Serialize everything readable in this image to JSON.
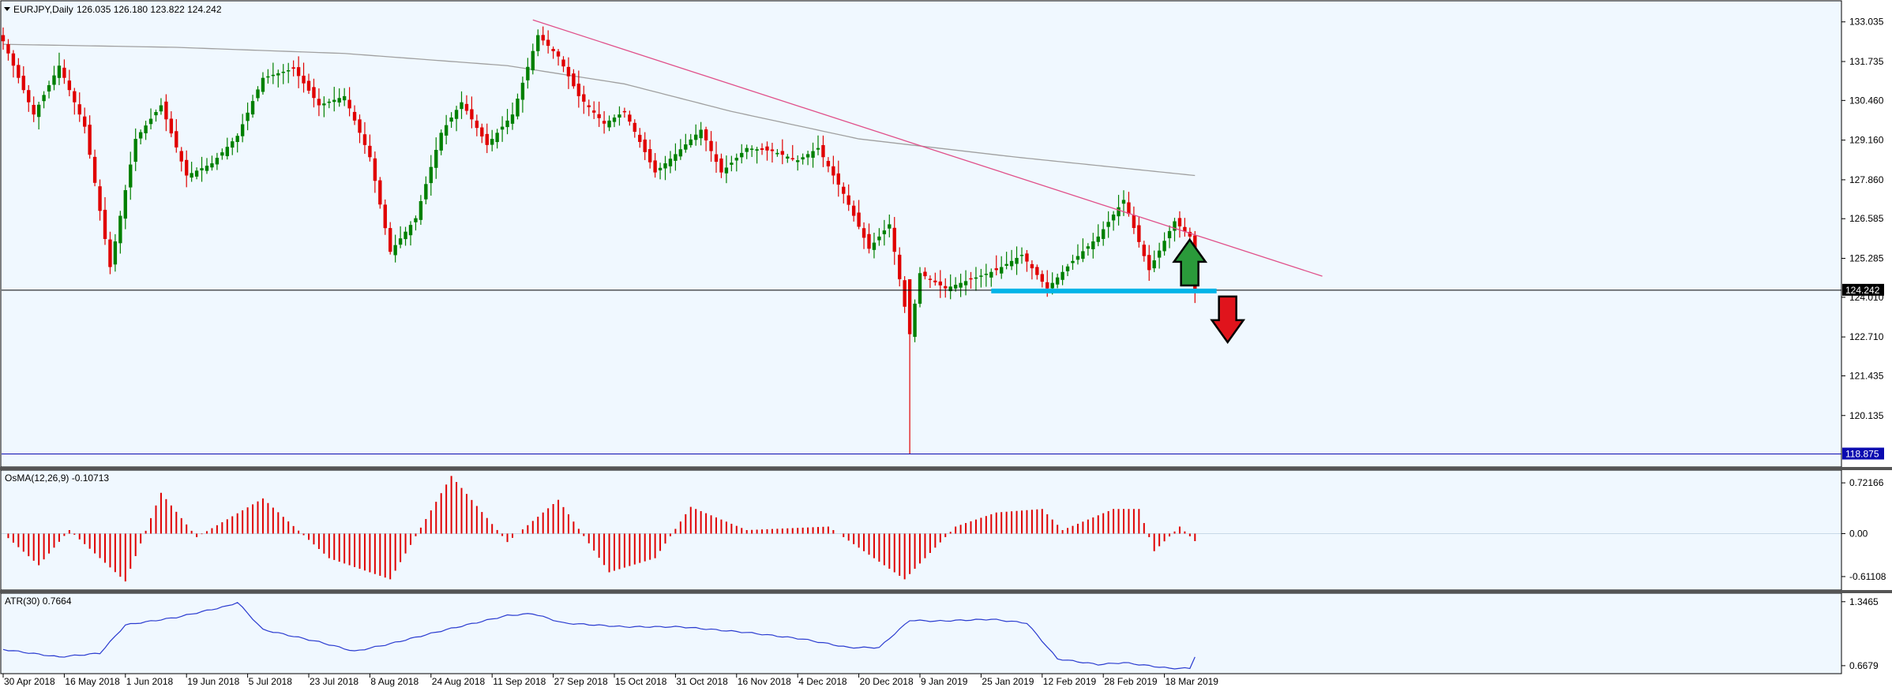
{
  "header": {
    "symbol": "EURJPY,Daily",
    "ohlc": "126.035 126.180 123.822 124.242"
  },
  "colors": {
    "bg": "#f0f8ff",
    "bull": "#008000",
    "bear": "#e00000",
    "sma": "#a0a0a0",
    "trend": "#e0508a",
    "support": "#00b4e8",
    "atr": "#2a3bd0",
    "price_tag": "#000000",
    "low_tag": "#0a0ab0"
  },
  "chart_data": [
    {
      "type": "candlestick",
      "title": "EURJPY,Daily",
      "ohlc_label": "126.035 126.180 123.822 124.242",
      "y_ticks": [
        "133.035",
        "131.735",
        "130.460",
        "129.160",
        "127.860",
        "126.585",
        "125.285",
        "124.010",
        "122.710",
        "121.435",
        "120.135"
      ],
      "ylim": [
        118.5,
        133.7
      ],
      "x_ticks": [
        "30 Apr 2018",
        "16 May 2018",
        "1 Jun 2018",
        "19 Jun 2018",
        "5 Jul 2018",
        "23 Jul 2018",
        "8 Aug 2018",
        "24 Aug 2018",
        "11 Sep 2018",
        "27 Sep 2018",
        "15 Oct 2018",
        "31 Oct 2018",
        "16 Nov 2018",
        "4 Dec 2018",
        "20 Dec 2018",
        "9 Jan 2019",
        "25 Jan 2019",
        "12 Feb 2019",
        "28 Feb 2019",
        "18 Mar 2019"
      ],
      "current_price": "124.242",
      "period_low": "118.875",
      "anchors": [
        [
          "2018-04-30",
          132.4
        ],
        [
          "2018-05-08",
          130.0
        ],
        [
          "2018-05-15",
          131.6
        ],
        [
          "2018-05-22",
          129.6
        ],
        [
          "2018-05-29",
          125.0
        ],
        [
          "2018-06-05",
          129.2
        ],
        [
          "2018-06-12",
          130.3
        ],
        [
          "2018-06-19",
          128.0
        ],
        [
          "2018-06-26",
          128.4
        ],
        [
          "2018-07-03",
          129.3
        ],
        [
          "2018-07-10",
          131.2
        ],
        [
          "2018-07-18",
          131.5
        ],
        [
          "2018-07-25",
          130.3
        ],
        [
          "2018-08-01",
          130.6
        ],
        [
          "2018-08-08",
          128.6
        ],
        [
          "2018-08-14",
          125.5
        ],
        [
          "2018-08-21",
          126.6
        ],
        [
          "2018-08-28",
          129.4
        ],
        [
          "2018-09-03",
          130.4
        ],
        [
          "2018-09-10",
          129.0
        ],
        [
          "2018-09-17",
          130.0
        ],
        [
          "2018-09-24",
          132.6
        ],
        [
          "2018-09-28",
          131.9
        ],
        [
          "2018-10-04",
          130.6
        ],
        [
          "2018-10-11",
          129.7
        ],
        [
          "2018-10-17",
          130.1
        ],
        [
          "2018-10-25",
          128.1
        ],
        [
          "2018-10-31",
          128.7
        ],
        [
          "2018-11-07",
          129.5
        ],
        [
          "2018-11-13",
          128.1
        ],
        [
          "2018-11-20",
          128.9
        ],
        [
          "2018-11-27",
          128.8
        ],
        [
          "2018-12-04",
          128.5
        ],
        [
          "2018-12-10",
          128.9
        ],
        [
          "2018-12-17",
          127.4
        ],
        [
          "2018-12-24",
          125.6
        ],
        [
          "2018-12-28",
          126.4
        ],
        [
          "2019-01-03",
          122.8
        ],
        [
          "2019-01-07",
          124.8
        ],
        [
          "2019-01-14",
          124.3
        ],
        [
          "2019-01-21",
          124.6
        ],
        [
          "2019-01-28",
          124.9
        ],
        [
          "2019-02-04",
          125.4
        ],
        [
          "2019-02-11",
          124.3
        ],
        [
          "2019-02-18",
          125.2
        ],
        [
          "2019-02-25",
          126.0
        ],
        [
          "2019-03-04",
          127.2
        ],
        [
          "2019-03-11",
          124.9
        ],
        [
          "2019-03-18",
          126.5
        ],
        [
          "2019-03-21",
          126.0
        ],
        [
          "2019-03-22",
          124.242
        ]
      ],
      "sma_label": "",
      "trendline": {
        "start": [
          "2018-09-21",
          133.1
        ],
        "end": [
          "2019-04-26",
          124.7
        ]
      },
      "support": {
        "start": [
          "2019-01-25",
          124.242
        ],
        "end": [
          "2019-03-27",
          124.242
        ]
      },
      "arrows": {
        "up": "green-up-arrow",
        "down": "red-down-arrow"
      }
    },
    {
      "type": "bar",
      "title": "OsMA(12,26,9) -0.10713",
      "y_ticks": [
        "0.72166",
        "0.00",
        "-0.61108"
      ],
      "ylim": [
        -0.78,
        0.88
      ],
      "anchors": [
        [
          "2018-04-30",
          0.0
        ],
        [
          "2018-05-09",
          -0.45
        ],
        [
          "2018-05-17",
          0.05
        ],
        [
          "2018-06-01",
          -0.68
        ],
        [
          "2018-06-12",
          0.58
        ],
        [
          "2018-06-21",
          -0.05
        ],
        [
          "2018-07-10",
          0.5
        ],
        [
          "2018-07-27",
          -0.35
        ],
        [
          "2018-08-14",
          -0.65
        ],
        [
          "2018-08-30",
          0.82
        ],
        [
          "2018-09-14",
          -0.12
        ],
        [
          "2018-09-28",
          0.48
        ],
        [
          "2018-10-12",
          -0.55
        ],
        [
          "2018-10-25",
          -0.35
        ],
        [
          "2018-11-05",
          0.38
        ],
        [
          "2018-11-20",
          0.05
        ],
        [
          "2018-12-12",
          0.1
        ],
        [
          "2019-01-02",
          -0.65
        ],
        [
          "2019-01-16",
          0.1
        ],
        [
          "2019-01-28",
          0.3
        ],
        [
          "2019-02-08",
          0.35
        ],
        [
          "2019-02-14",
          0.05
        ],
        [
          "2019-02-28",
          0.35
        ],
        [
          "2019-03-07",
          0.35
        ],
        [
          "2019-03-12",
          -0.25
        ],
        [
          "2019-03-19",
          0.1
        ],
        [
          "2019-03-22",
          -0.107
        ]
      ]
    },
    {
      "type": "line",
      "title": "ATR(30) 0.7664",
      "y_ticks": [
        "1.3465",
        "0.6679"
      ],
      "ylim": [
        0.6,
        1.42
      ],
      "anchors": [
        [
          "2018-04-30",
          0.84
        ],
        [
          "2018-05-15",
          0.76
        ],
        [
          "2018-05-25",
          0.8
        ],
        [
          "2018-06-01",
          1.1
        ],
        [
          "2018-06-15",
          1.18
        ],
        [
          "2018-06-29",
          1.3
        ],
        [
          "2018-07-03",
          1.34
        ],
        [
          "2018-07-10",
          1.05
        ],
        [
          "2018-07-25",
          0.92
        ],
        [
          "2018-08-03",
          0.82
        ],
        [
          "2018-08-14",
          0.9
        ],
        [
          "2018-08-29",
          1.05
        ],
        [
          "2018-09-14",
          1.2
        ],
        [
          "2018-09-21",
          1.22
        ],
        [
          "2018-10-01",
          1.12
        ],
        [
          "2018-10-17",
          1.08
        ],
        [
          "2018-11-01",
          1.08
        ],
        [
          "2018-11-20",
          1.02
        ],
        [
          "2018-12-05",
          0.95
        ],
        [
          "2018-12-18",
          0.86
        ],
        [
          "2018-12-26",
          0.86
        ],
        [
          "2019-01-03",
          1.15
        ],
        [
          "2019-01-10",
          1.14
        ],
        [
          "2019-01-25",
          1.16
        ],
        [
          "2019-02-05",
          1.12
        ],
        [
          "2019-02-13",
          0.74
        ],
        [
          "2019-02-25",
          0.68
        ],
        [
          "2019-03-04",
          0.7
        ],
        [
          "2019-03-15",
          0.64
        ],
        [
          "2019-03-21",
          0.64
        ],
        [
          "2019-03-22",
          0.7664
        ]
      ]
    }
  ]
}
